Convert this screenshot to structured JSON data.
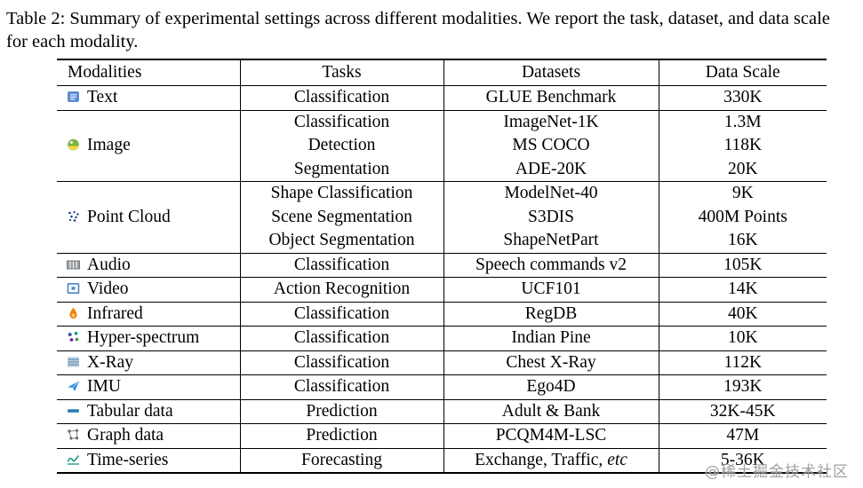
{
  "caption": "Table 2: Summary of experimental settings across different modalities. We report the task, dataset, and data scale for each modality.",
  "watermark": "@稀土掘金技术社区",
  "table": {
    "headers": [
      "Modalities",
      "Tasks",
      "Datasets",
      "Data Scale"
    ],
    "rows": [
      {
        "modality": "Text",
        "icon": "text-icon",
        "tasks": [
          "Classification"
        ],
        "datasets": [
          "GLUE Benchmark"
        ],
        "scales": [
          "330K"
        ]
      },
      {
        "modality": "Image",
        "icon": "image-icon",
        "tasks": [
          "Classification",
          "Detection",
          "Segmentation"
        ],
        "datasets": [
          "ImageNet-1K",
          "MS COCO",
          "ADE-20K"
        ],
        "scales": [
          "1.3M",
          "118K",
          "20K"
        ]
      },
      {
        "modality": "Point Cloud",
        "icon": "point-cloud-icon",
        "tasks": [
          "Shape Classification",
          "Scene Segmentation",
          "Object Segmentation"
        ],
        "datasets": [
          "ModelNet-40",
          "S3DIS",
          "ShapeNetPart"
        ],
        "scales": [
          "9K",
          "400M Points",
          "16K"
        ]
      },
      {
        "modality": "Audio",
        "icon": "audio-icon",
        "tasks": [
          "Classification"
        ],
        "datasets": [
          "Speech commands v2"
        ],
        "scales": [
          "105K"
        ]
      },
      {
        "modality": "Video",
        "icon": "video-icon",
        "tasks": [
          "Action Recognition"
        ],
        "datasets": [
          "UCF101"
        ],
        "scales": [
          "14K"
        ]
      },
      {
        "modality": "Infrared",
        "icon": "infrared-icon",
        "tasks": [
          "Classification"
        ],
        "datasets": [
          "RegDB"
        ],
        "scales": [
          "40K"
        ]
      },
      {
        "modality": "Hyper-spectrum",
        "icon": "hyper-spectrum-icon",
        "tasks": [
          "Classification"
        ],
        "datasets": [
          "Indian Pine"
        ],
        "scales": [
          "10K"
        ]
      },
      {
        "modality": "X-Ray",
        "icon": "x-ray-icon",
        "tasks": [
          "Classification"
        ],
        "datasets": [
          "Chest X-Ray"
        ],
        "scales": [
          "112K"
        ]
      },
      {
        "modality": "IMU",
        "icon": "imu-icon",
        "tasks": [
          "Classification"
        ],
        "datasets": [
          "Ego4D"
        ],
        "scales": [
          "193K"
        ]
      },
      {
        "modality": "Tabular data",
        "icon": "tabular-icon",
        "tasks": [
          "Prediction"
        ],
        "datasets": [
          "Adult & Bank"
        ],
        "scales": [
          "32K-45K"
        ]
      },
      {
        "modality": "Graph data",
        "icon": "graph-icon",
        "tasks": [
          "Prediction"
        ],
        "datasets": [
          "PCQM4M-LSC"
        ],
        "scales": [
          "47M"
        ]
      },
      {
        "modality": "Time-series",
        "icon": "time-series-icon",
        "tasks": [
          "Forecasting"
        ],
        "datasets": [
          "Exchange, Traffic, etc"
        ],
        "scales": [
          "5-36K"
        ]
      }
    ]
  }
}
